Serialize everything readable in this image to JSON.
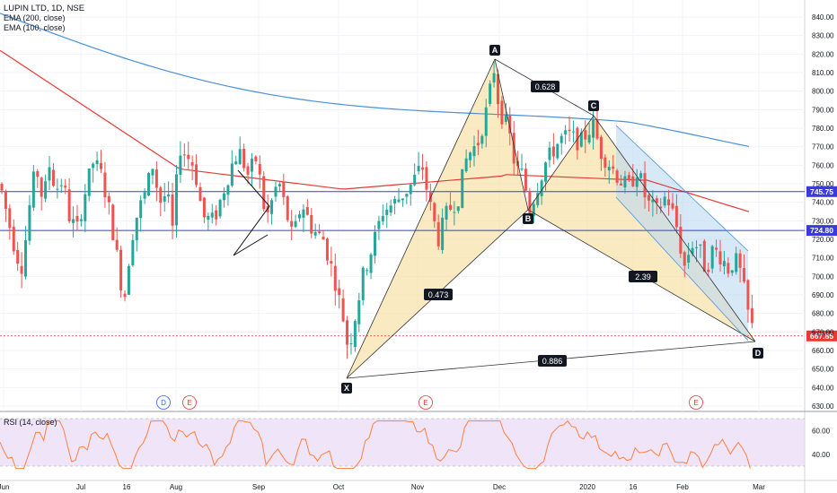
{
  "header": {
    "symbol": "LUPIN LTD, 1D, NSE",
    "ema200": "EMA (200, close)",
    "ema100": "EMA (100, close)"
  },
  "rsi_label": "RSI (14, close)",
  "colors": {
    "up": "#26a69a",
    "down": "#ef5350",
    "ema200": "#4a90d9",
    "ema100": "#e53935",
    "hline": "#3b3bd6",
    "pattern_fill": "#f7dfa0",
    "channel_fill": "#bcd9f2",
    "rsi_line": "#ff7f3f",
    "rsi_band": "#e9d8f5"
  },
  "chart_data": {
    "type": "candlestick",
    "ylim": [
      630,
      845
    ],
    "y_ticks": [
      630,
      640,
      650,
      660,
      670,
      680,
      690,
      700,
      710,
      720,
      730,
      740,
      750,
      760,
      770,
      780,
      790,
      800,
      810,
      820,
      830,
      840
    ],
    "x_labels": [
      "Jun",
      "Jul",
      "16",
      "Aug",
      "Sep",
      "Oct",
      "Nov",
      "Dec",
      "2020",
      "16",
      "Feb",
      "Mar"
    ],
    "price_lines": [
      {
        "label": "745.75",
        "value": 745.75,
        "color": "#3b3bd6"
      },
      {
        "label": "724.80",
        "value": 724.8,
        "color": "#3b3bd6"
      },
      {
        "label": "667.85",
        "value": 667.85,
        "color": "#e53935"
      }
    ],
    "harmonic": {
      "points": [
        {
          "name": "X",
          "value": 647
        },
        {
          "name": "A",
          "value": 816
        },
        {
          "name": "B",
          "value": 735
        },
        {
          "name": "C",
          "value": 787
        },
        {
          "name": "D",
          "value": 665
        }
      ],
      "ratios": [
        "0.473",
        "0.628",
        "2.39",
        "0.886"
      ]
    },
    "events": [
      "D",
      "E",
      "E",
      "E"
    ],
    "rsi": {
      "ylim": [
        25,
        72
      ],
      "ticks": [
        40.0,
        60.0
      ],
      "bands": [
        30,
        70
      ]
    },
    "candles_count": 190
  }
}
